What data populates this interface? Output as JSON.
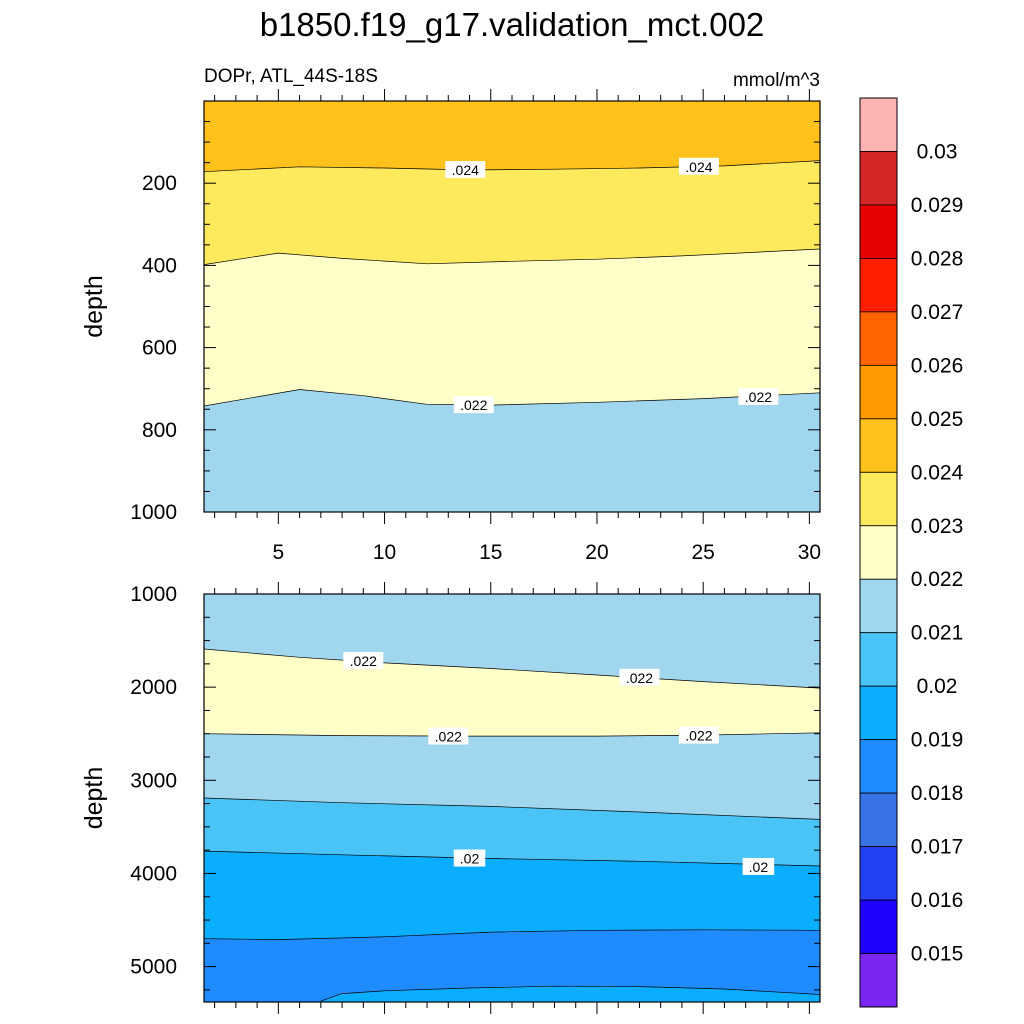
{
  "title": "b1850.f19_g17.validation_mct.002",
  "chart_data": {
    "type": "contour",
    "variable_label": "DOPr, ATL_44S-18S",
    "units_label": "mmol/m^3",
    "x_ticks": [
      "5",
      "10",
      "15",
      "20",
      "25",
      "30"
    ],
    "x_range": [
      1.5,
      30.5
    ],
    "contour_levels": [
      0.015,
      0.016,
      0.017,
      0.018,
      0.019,
      0.02,
      0.021,
      0.022,
      0.023,
      0.024,
      0.025,
      0.026,
      0.027,
      0.028,
      0.029,
      0.03
    ],
    "colorbar": {
      "labels": [
        "0.03",
        "0.029",
        "0.028",
        "0.027",
        "0.026",
        "0.025",
        "0.024",
        "0.023",
        "0.022",
        "0.021",
        "0.02",
        "0.019",
        "0.018",
        "0.017",
        "0.016",
        "0.015"
      ],
      "colors": [
        "#ffb4b4",
        "#d42626",
        "#e60000",
        "#ff1e00",
        "#ff6400",
        "#ff9b00",
        "#ffc21a",
        "#ffe95c",
        "#ffffc8",
        "#a0d6ee",
        "#4ac4f6",
        "#0baeff",
        "#1e8cff",
        "#3873e6",
        "#2341f0",
        "#1e00ff",
        "#7a25f0"
      ]
    },
    "panels": [
      {
        "ylabel": "depth",
        "y_range": [
          0,
          1000
        ],
        "y_ticks": [
          "200",
          "400",
          "600",
          "800",
          "1000"
        ],
        "y_tick_values": [
          200,
          400,
          600,
          800,
          1000
        ],
        "fill_colors": [
          "#ffc21a",
          "#ffe95c",
          "#ffffc8",
          "#a0d6ee"
        ],
        "contours": [
          {
            "level": 0.024,
            "depth": [
              [
                1.5,
                172
              ],
              [
                6,
                160
              ],
              [
                10,
                163
              ],
              [
                14,
                168
              ],
              [
                18,
                166
              ],
              [
                22,
                163
              ],
              [
                26,
                158
              ],
              [
                30.5,
                145
              ]
            ]
          },
          {
            "level": 0.023,
            "depth": [
              [
                1.5,
                398
              ],
              [
                5,
                370
              ],
              [
                8,
                383
              ],
              [
                12,
                396
              ],
              [
                16,
                390
              ],
              [
                20,
                385
              ],
              [
                24,
                377
              ],
              [
                30.5,
                360
              ]
            ]
          },
          {
            "level": 0.022,
            "depth": [
              [
                1.5,
                742
              ],
              [
                6,
                702
              ],
              [
                9,
                717
              ],
              [
                12,
                738
              ],
              [
                15,
                740
              ],
              [
                20,
                733
              ],
              [
                25,
                724
              ],
              [
                30.5,
                710
              ]
            ]
          }
        ],
        "labels": [
          {
            "text": ".024",
            "x": 13.8,
            "depth": 168
          },
          {
            "text": ".024",
            "x": 24.8,
            "depth": 160
          },
          {
            "text": ".022",
            "x": 14.2,
            "depth": 740
          },
          {
            "text": ".022",
            "x": 27.6,
            "depth": 720
          }
        ]
      },
      {
        "ylabel": "depth",
        "y_range": [
          1000,
          5380
        ],
        "y_ticks": [
          "1000",
          "2000",
          "3000",
          "4000",
          "5000"
        ],
        "y_tick_values": [
          1000,
          2000,
          3000,
          4000,
          5000
        ],
        "fill_colors": [
          "#a0d6ee",
          "#ffffc8",
          "#a0d6ee",
          "#4ac4f6",
          "#0baeff",
          "#1e8cff",
          "#0baeff"
        ],
        "contours": [
          {
            "level": 0.022,
            "depth": [
              [
                1.5,
                1590
              ],
              [
                6,
                1680
              ],
              [
                10,
                1740
              ],
              [
                15,
                1800
              ],
              [
                20,
                1870
              ],
              [
                25,
                1940
              ],
              [
                30.5,
                2010
              ]
            ]
          },
          {
            "level": 0.022,
            "depth": [
              [
                1.5,
                2500
              ],
              [
                8,
                2520
              ],
              [
                14,
                2525
              ],
              [
                20,
                2525
              ],
              [
                25,
                2515
              ],
              [
                30.5,
                2490
              ]
            ]
          },
          {
            "level": 0.021,
            "depth": [
              [
                1.5,
                3190
              ],
              [
                8,
                3240
              ],
              [
                15,
                3280
              ],
              [
                22,
                3340
              ],
              [
                30.5,
                3420
              ]
            ]
          },
          {
            "level": 0.02,
            "depth": [
              [
                1.5,
                3760
              ],
              [
                8,
                3800
              ],
              [
                15,
                3840
              ],
              [
                22,
                3870
              ],
              [
                30.5,
                3920
              ]
            ]
          },
          {
            "level": 0.019,
            "depth": [
              [
                1.5,
                4700
              ],
              [
                5,
                4710
              ],
              [
                10,
                4680
              ],
              [
                15,
                4630
              ],
              [
                20,
                4610
              ],
              [
                25,
                4605
              ],
              [
                30.5,
                4610
              ]
            ]
          },
          {
            "level": 0.019,
            "depth": [
              [
                7,
                5370
              ],
              [
                8,
                5290
              ],
              [
                10,
                5260
              ],
              [
                14,
                5230
              ],
              [
                18,
                5210
              ],
              [
                22,
                5215
              ],
              [
                26,
                5240
              ],
              [
                30.5,
                5300
              ]
            ]
          }
        ],
        "labels": [
          {
            "text": ".022",
            "x": 9.0,
            "depth": 1720
          },
          {
            "text": ".022",
            "x": 22.0,
            "depth": 1900
          },
          {
            "text": ".022",
            "x": 13.0,
            "depth": 2530
          },
          {
            "text": ".022",
            "x": 24.8,
            "depth": 2520
          },
          {
            "text": ".02",
            "x": 14.0,
            "depth": 3840
          },
          {
            "text": ".02",
            "x": 27.6,
            "depth": 3930
          }
        ]
      }
    ]
  }
}
